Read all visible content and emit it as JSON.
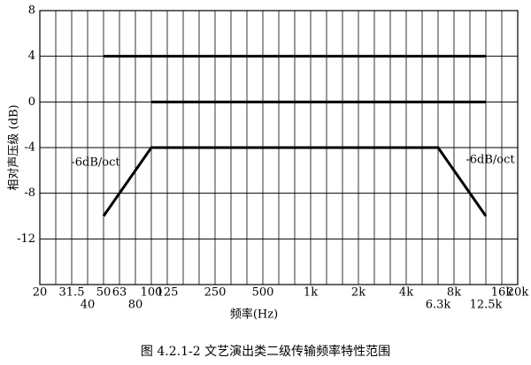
{
  "chart_data": {
    "type": "line",
    "title": "图 4.2.1-2   文艺演出类二级传输频率特性范围",
    "x_label": "频率(Hz)",
    "y_label": "相对声压级 (dB)",
    "annotations": [
      "-6dB/oct",
      "-6dB/oct"
    ],
    "categories": [
      "20",
      null,
      "31.5",
      "40",
      "50",
      "63",
      "80",
      "100",
      "125",
      null,
      null,
      "250",
      null,
      null,
      "500",
      null,
      null,
      "1k",
      null,
      null,
      "2k",
      null,
      null,
      "4k",
      null,
      "6.3k",
      "8k",
      null,
      "12.5k",
      "16k",
      "20k"
    ],
    "series": [
      {
        "color": "#000000",
        "values": [
          null,
          null,
          null,
          null,
          4,
          4,
          4,
          4,
          4,
          4,
          4,
          4,
          4,
          4,
          4,
          4,
          4,
          4,
          4,
          4,
          4,
          4,
          4,
          4,
          4,
          4,
          4,
          4,
          4,
          null,
          null
        ]
      },
      {
        "color": "#000000",
        "values": [
          null,
          null,
          null,
          null,
          null,
          null,
          null,
          0,
          0,
          0,
          0,
          0,
          0,
          0,
          0,
          0,
          0,
          0,
          0,
          0,
          0,
          0,
          0,
          0,
          0,
          0,
          0,
          0,
          0,
          null,
          null
        ]
      },
      {
        "color": "#000000",
        "values": [
          null,
          null,
          null,
          null,
          -10,
          -8,
          -6,
          -4,
          -4,
          -4,
          -4,
          -4,
          -4,
          -4,
          -4,
          -4,
          -4,
          -4,
          -4,
          -4,
          -4,
          -4,
          -4,
          -4,
          -4,
          -4,
          -6,
          -8,
          -10,
          null,
          null
        ]
      }
    ],
    "ylim": [
      -16,
      8
    ],
    "yticks": [
      -12,
      -8,
      -4,
      0,
      4,
      8
    ],
    "grid": true
  }
}
